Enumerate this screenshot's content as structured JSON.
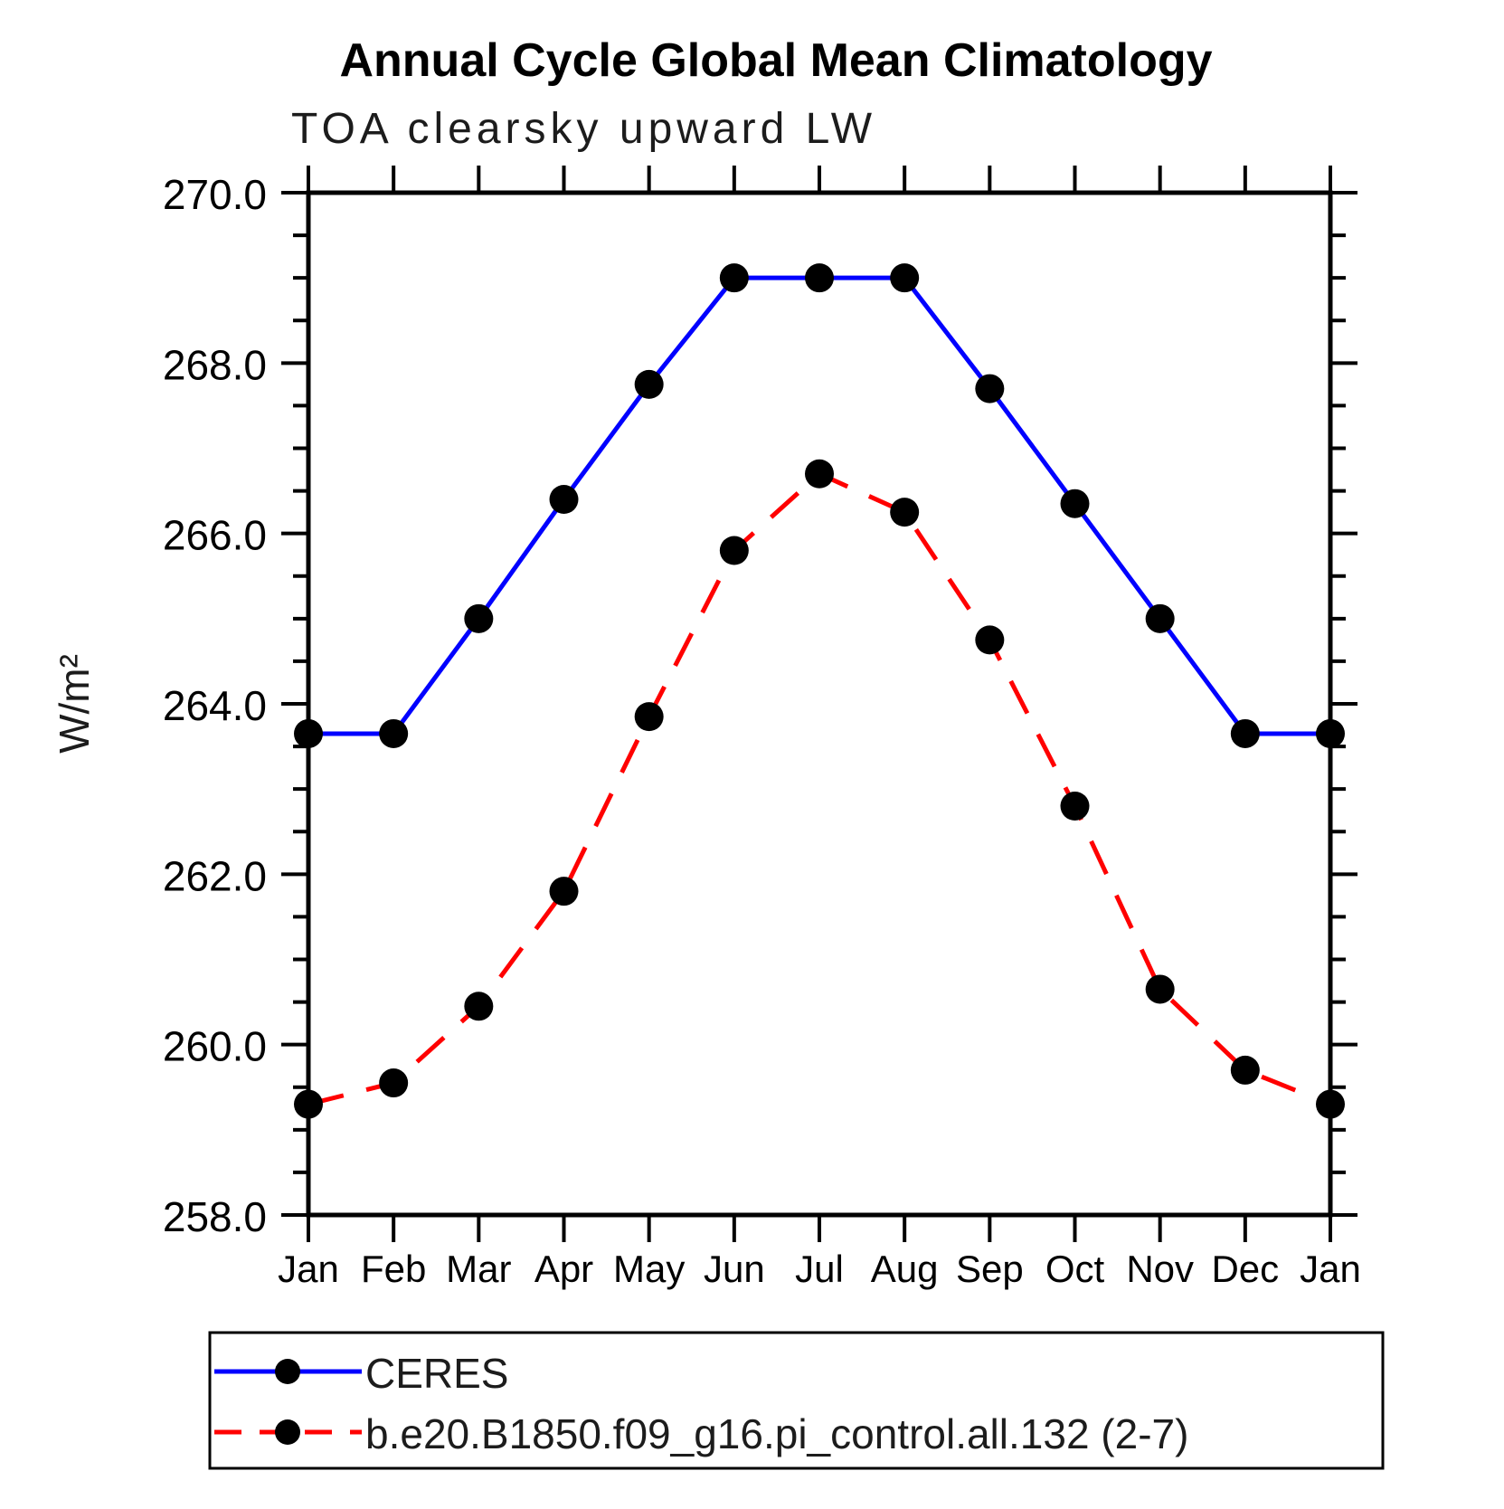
{
  "title": "Annual Cycle Global Mean Climatology",
  "subtitle": "TOA clearsky upward LW",
  "ylabel": "W/m²",
  "chart_data": {
    "type": "line",
    "categories": [
      "Jan",
      "Feb",
      "Mar",
      "Apr",
      "May",
      "Jun",
      "Jul",
      "Aug",
      "Sep",
      "Oct",
      "Nov",
      "Dec",
      "Jan"
    ],
    "xlabel": "",
    "ylabel": "W/m²",
    "ylim": [
      258.0,
      270.0
    ],
    "y_ticks": [
      270.0,
      268.0,
      266.0,
      264.0,
      262.0,
      260.0,
      258.0
    ],
    "minor_tick_step": 0.5,
    "grid": false,
    "legend_position": "bottom-left",
    "series": [
      {
        "name": "CERES",
        "color": "#0000ff",
        "line_style": "solid",
        "marker": "filled-circle",
        "marker_color": "#000000",
        "values": [
          263.65,
          263.65,
          265.0,
          266.4,
          267.75,
          269.0,
          269.0,
          269.0,
          267.7,
          266.35,
          265.0,
          263.65,
          263.65
        ]
      },
      {
        "name": "b.e20.B1850.f09_g16.pi_control.all.132 (2-7)",
        "color": "#ff0000",
        "line_style": "dashed",
        "marker": "filled-circle",
        "marker_color": "#000000",
        "values": [
          259.3,
          259.55,
          260.45,
          261.8,
          263.85,
          265.8,
          266.7,
          266.25,
          264.75,
          262.8,
          260.65,
          259.7,
          259.3
        ]
      }
    ]
  }
}
